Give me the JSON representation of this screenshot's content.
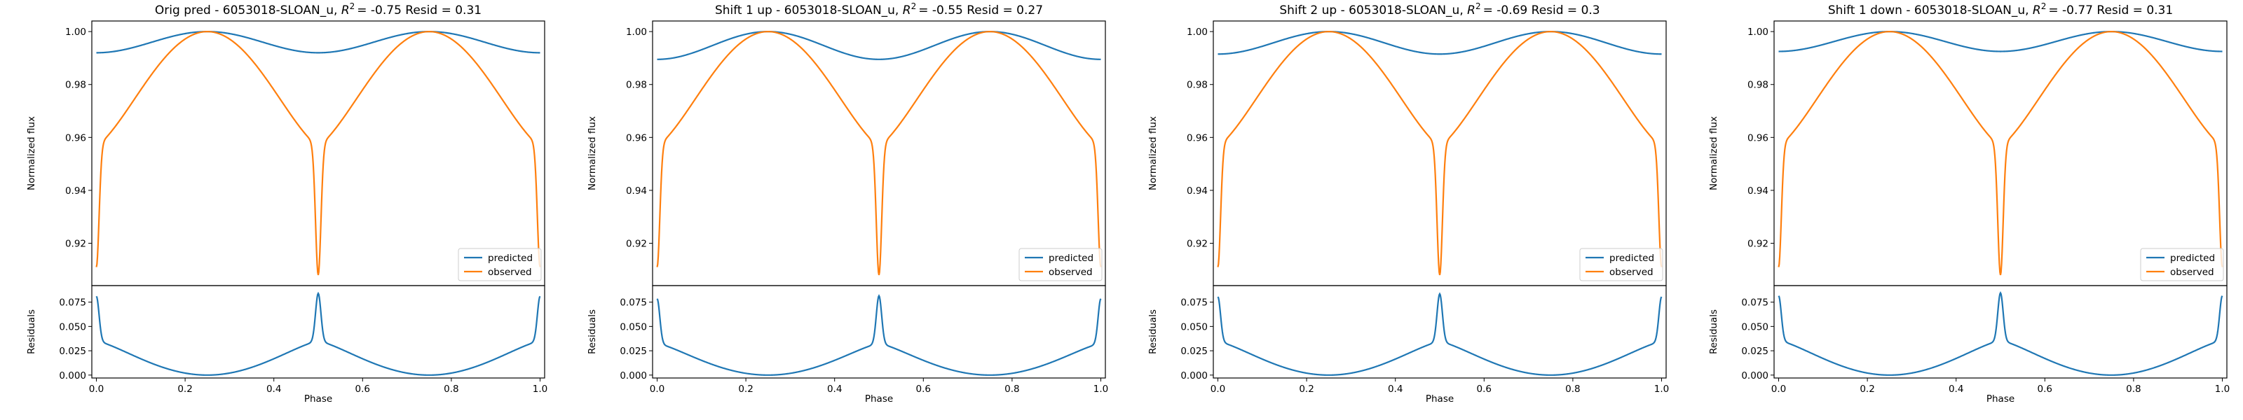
{
  "figure": {
    "xlabel": "Phase",
    "ylabel_top": "Normalized flux",
    "ylabel_bottom": "Residuals",
    "legend": [
      "predicted",
      "observed"
    ],
    "colors": {
      "predicted": "#1f77b4",
      "observed": "#ff7f0e"
    }
  },
  "chart_data": [
    {
      "type": "line",
      "title": "Orig pred - 6053018-SLOAN_u, R² = -0.75 Resid = 0.31",
      "title_parts": {
        "prefix": "Orig pred - 6053018-SLOAN_u, ",
        "stat": "= -0.75 Resid = 0.31"
      },
      "xlabel": "Phase",
      "ylabel": "Normalized flux",
      "residual_ylabel": "Residuals",
      "xlim": [
        0.0,
        1.0
      ],
      "xticks": [
        "0.0",
        "0.2",
        "0.4",
        "0.6",
        "0.8",
        "1.0"
      ],
      "ylim": [
        0.904,
        1.004
      ],
      "yticks": [
        "0.92",
        "0.94",
        "0.96",
        "0.98",
        "1.00"
      ],
      "residual_ylim": [
        -0.003,
        0.092
      ],
      "residual_yticks": [
        "0.000",
        "0.025",
        "0.050",
        "0.075"
      ],
      "series": [
        {
          "name": "predicted",
          "min": 0.992,
          "max": 1.0,
          "note": "cos 4π phase, peaks 0.25 / 0.75"
        },
        {
          "name": "observed",
          "min_edges": 0.911,
          "min_mid": 0.908,
          "shoulder": 0.957,
          "max": 1.0
        }
      ]
    },
    {
      "type": "line",
      "title": "Shift 1 up - 6053018-SLOAN_u, R² = -0.55 Resid = 0.27",
      "title_parts": {
        "prefix": "Shift 1 up - 6053018-SLOAN_u, ",
        "stat": "= -0.55 Resid = 0.27"
      },
      "xlabel": "Phase",
      "ylabel": "Normalized flux",
      "residual_ylabel": "Residuals",
      "xlim": [
        0.0,
        1.0
      ],
      "xticks": [
        "0.0",
        "0.2",
        "0.4",
        "0.6",
        "0.8",
        "1.0"
      ],
      "ylim": [
        0.904,
        1.004
      ],
      "yticks": [
        "0.92",
        "0.94",
        "0.96",
        "0.98",
        "1.00"
      ],
      "residual_ylim": [
        -0.003,
        0.092
      ],
      "residual_yticks": [
        "0.000",
        "0.025",
        "0.050",
        "0.075"
      ],
      "series": [
        {
          "name": "predicted",
          "min": 0.9895,
          "max": 1.0
        },
        {
          "name": "observed",
          "min_edges": 0.911,
          "min_mid": 0.908,
          "shoulder": 0.957,
          "max": 1.0
        }
      ]
    },
    {
      "type": "line",
      "title": "Shift 2 up - 6053018-SLOAN_u, R² = -0.69 Resid = 0.3",
      "title_parts": {
        "prefix": "Shift 2 up - 6053018-SLOAN_u, ",
        "stat": "= -0.69 Resid = 0.3"
      },
      "xlabel": "Phase",
      "ylabel": "Normalized flux",
      "residual_ylabel": "Residuals",
      "xlim": [
        0.0,
        1.0
      ],
      "xticks": [
        "0.0",
        "0.2",
        "0.4",
        "0.6",
        "0.8",
        "1.0"
      ],
      "ylim": [
        0.904,
        1.004
      ],
      "yticks": [
        "0.92",
        "0.94",
        "0.96",
        "0.98",
        "1.00"
      ],
      "residual_ylim": [
        -0.003,
        0.092
      ],
      "residual_yticks": [
        "0.000",
        "0.025",
        "0.050",
        "0.075"
      ],
      "series": [
        {
          "name": "predicted",
          "min": 0.9915,
          "max": 1.0
        },
        {
          "name": "observed",
          "min_edges": 0.911,
          "min_mid": 0.908,
          "shoulder": 0.957,
          "max": 1.0
        }
      ]
    },
    {
      "type": "line",
      "title": "Shift 1 down - 6053018-SLOAN_u, R² = -0.77 Resid = 0.31",
      "title_parts": {
        "prefix": "Shift 1 down - 6053018-SLOAN_u, ",
        "stat": "= -0.77 Resid = 0.31"
      },
      "xlabel": "Phase",
      "ylabel": "Normalized flux",
      "residual_ylabel": "Residuals",
      "xlim": [
        0.0,
        1.0
      ],
      "xticks": [
        "0.0",
        "0.2",
        "0.4",
        "0.6",
        "0.8",
        "1.0"
      ],
      "ylim": [
        0.904,
        1.004
      ],
      "yticks": [
        "0.92",
        "0.94",
        "0.96",
        "0.98",
        "1.00"
      ],
      "residual_ylim": [
        -0.003,
        0.092
      ],
      "residual_yticks": [
        "0.000",
        "0.025",
        "0.050",
        "0.075"
      ],
      "series": [
        {
          "name": "predicted",
          "min": 0.9925,
          "max": 1.0
        },
        {
          "name": "observed",
          "min_edges": 0.911,
          "min_mid": 0.908,
          "shoulder": 0.957,
          "max": 1.0
        }
      ]
    }
  ]
}
